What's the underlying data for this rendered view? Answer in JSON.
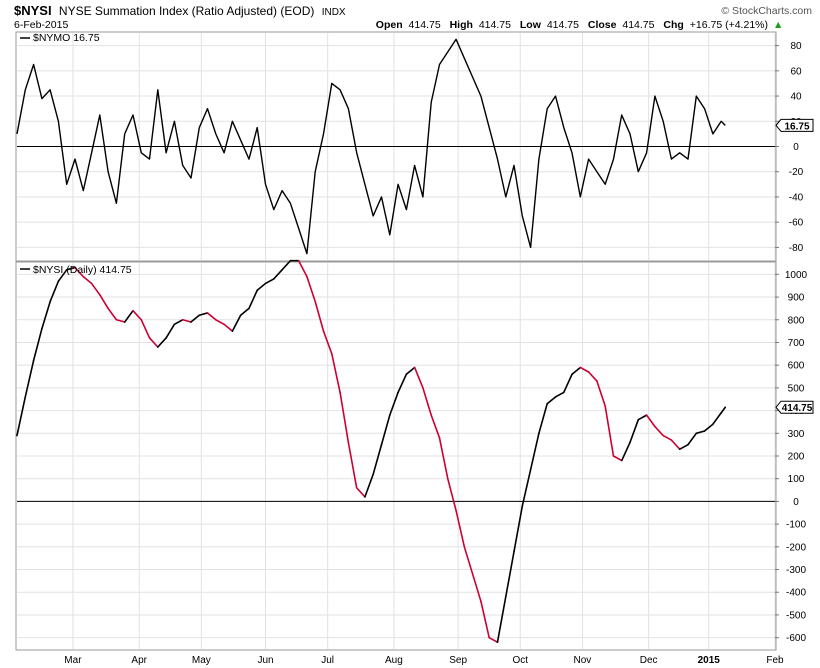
{
  "header": {
    "symbol": "$NYSI",
    "name": "NYSE Summation Index (Ratio Adjusted) (EOD)",
    "exchange": "INDX",
    "date": "6-Feb-2015",
    "open_label": "Open",
    "open": "414.75",
    "high_label": "High",
    "high": "414.75",
    "low_label": "Low",
    "low": "414.75",
    "close_label": "Close",
    "close": "414.75",
    "chg_label": "Chg",
    "chg": "+16.75 (+4.21%)",
    "chg_arrow": "▲",
    "brand": "© StockCharts.com",
    "up_color": "#1a9e1a"
  },
  "chart_data": [
    {
      "type": "line",
      "panel_label": "$NYMO 16.75",
      "current_value": "16.75",
      "ylim": [
        -90,
        90
      ],
      "yticks": [
        80,
        60,
        40,
        20,
        0,
        -20,
        -40,
        -60,
        -80
      ],
      "zero_line": true,
      "line_color": "#000000",
      "x_start_day": 0,
      "x_end_day": 342,
      "x": [
        0,
        4,
        8,
        12,
        16,
        20,
        24,
        28,
        32,
        36,
        40,
        44,
        48,
        52,
        56,
        60,
        64,
        68,
        72,
        76,
        80,
        84,
        88,
        92,
        96,
        100,
        104,
        108,
        112,
        116,
        120,
        124,
        128,
        132,
        136,
        140,
        144,
        148,
        152,
        156,
        160,
        164,
        168,
        172,
        176,
        180,
        184,
        188,
        192,
        196,
        200,
        204,
        208,
        212,
        216,
        220,
        224,
        228,
        232,
        236,
        240,
        244,
        248,
        252,
        256,
        260,
        264,
        268,
        272,
        276,
        280,
        284,
        288,
        292,
        296,
        300,
        304,
        308,
        312,
        316,
        320,
        324,
        328,
        332,
        336,
        340,
        342
      ],
      "y": [
        10,
        45,
        65,
        38,
        45,
        20,
        -30,
        -10,
        -35,
        -5,
        25,
        -20,
        -45,
        10,
        25,
        -5,
        -10,
        45,
        -5,
        20,
        -15,
        -25,
        15,
        30,
        10,
        -5,
        20,
        5,
        -10,
        15,
        -30,
        -50,
        -35,
        -45,
        -65,
        -85,
        -20,
        10,
        50,
        45,
        30,
        -5,
        -30,
        -55,
        -40,
        -70,
        -30,
        -50,
        -15,
        -40,
        35,
        65,
        75,
        85,
        70,
        55,
        40,
        15,
        -10,
        -40,
        -15,
        -55,
        -80,
        -10,
        30,
        40,
        15,
        -5,
        -40,
        -10,
        -20,
        -30,
        -10,
        25,
        10,
        -20,
        -5,
        40,
        20,
        -10,
        -5,
        -10,
        40,
        30,
        10,
        20,
        16.75
      ]
    },
    {
      "type": "line",
      "panel_label": "$NYSI (Daily) 414.75",
      "current_value": "414.75",
      "ylim": [
        -650,
        1050
      ],
      "yticks": [
        1000,
        900,
        800,
        700,
        600,
        500,
        400,
        300,
        200,
        100,
        0,
        -100,
        -200,
        -300,
        -400,
        -500,
        -600
      ],
      "zero_line": true,
      "up_color": "#000000",
      "down_color": "#cc0033",
      "x_start_day": 0,
      "x_end_day": 342,
      "x": [
        0,
        4,
        8,
        12,
        16,
        20,
        24,
        28,
        32,
        36,
        40,
        44,
        48,
        52,
        56,
        60,
        64,
        68,
        72,
        76,
        80,
        84,
        88,
        92,
        96,
        100,
        104,
        108,
        112,
        116,
        120,
        124,
        128,
        132,
        136,
        140,
        144,
        148,
        152,
        156,
        160,
        164,
        168,
        172,
        176,
        180,
        184,
        188,
        192,
        196,
        200,
        204,
        208,
        212,
        216,
        220,
        224,
        228,
        232,
        236,
        240,
        244,
        248,
        252,
        256,
        260,
        264,
        268,
        272,
        276,
        280,
        284,
        288,
        292,
        296,
        300,
        304,
        308,
        312,
        316,
        320,
        324,
        328,
        332,
        336,
        340,
        342
      ],
      "y": [
        290,
        460,
        620,
        760,
        880,
        970,
        1020,
        1030,
        990,
        960,
        910,
        850,
        800,
        790,
        840,
        800,
        720,
        680,
        720,
        780,
        800,
        790,
        820,
        830,
        800,
        780,
        750,
        820,
        850,
        930,
        960,
        980,
        1020,
        1060,
        1060,
        990,
        880,
        750,
        650,
        480,
        260,
        60,
        20,
        120,
        250,
        380,
        480,
        560,
        590,
        500,
        380,
        280,
        100,
        -40,
        -200,
        -320,
        -440,
        -600,
        -620,
        -420,
        -220,
        -20,
        140,
        300,
        430,
        460,
        480,
        560,
        590,
        570,
        530,
        420,
        200,
        180,
        260,
        360,
        380,
        330,
        290,
        270,
        230,
        250,
        300,
        310,
        340,
        390,
        414.75
      ]
    }
  ],
  "x_axis": {
    "labels": [
      "Mar",
      "Apr",
      "May",
      "Jun",
      "Jul",
      "Aug",
      "Sep",
      "Oct",
      "Nov",
      "Dec",
      "2015",
      "Feb"
    ],
    "label_days": [
      27,
      59,
      89,
      120,
      150,
      182,
      213,
      243,
      273,
      305,
      334,
      366
    ]
  }
}
